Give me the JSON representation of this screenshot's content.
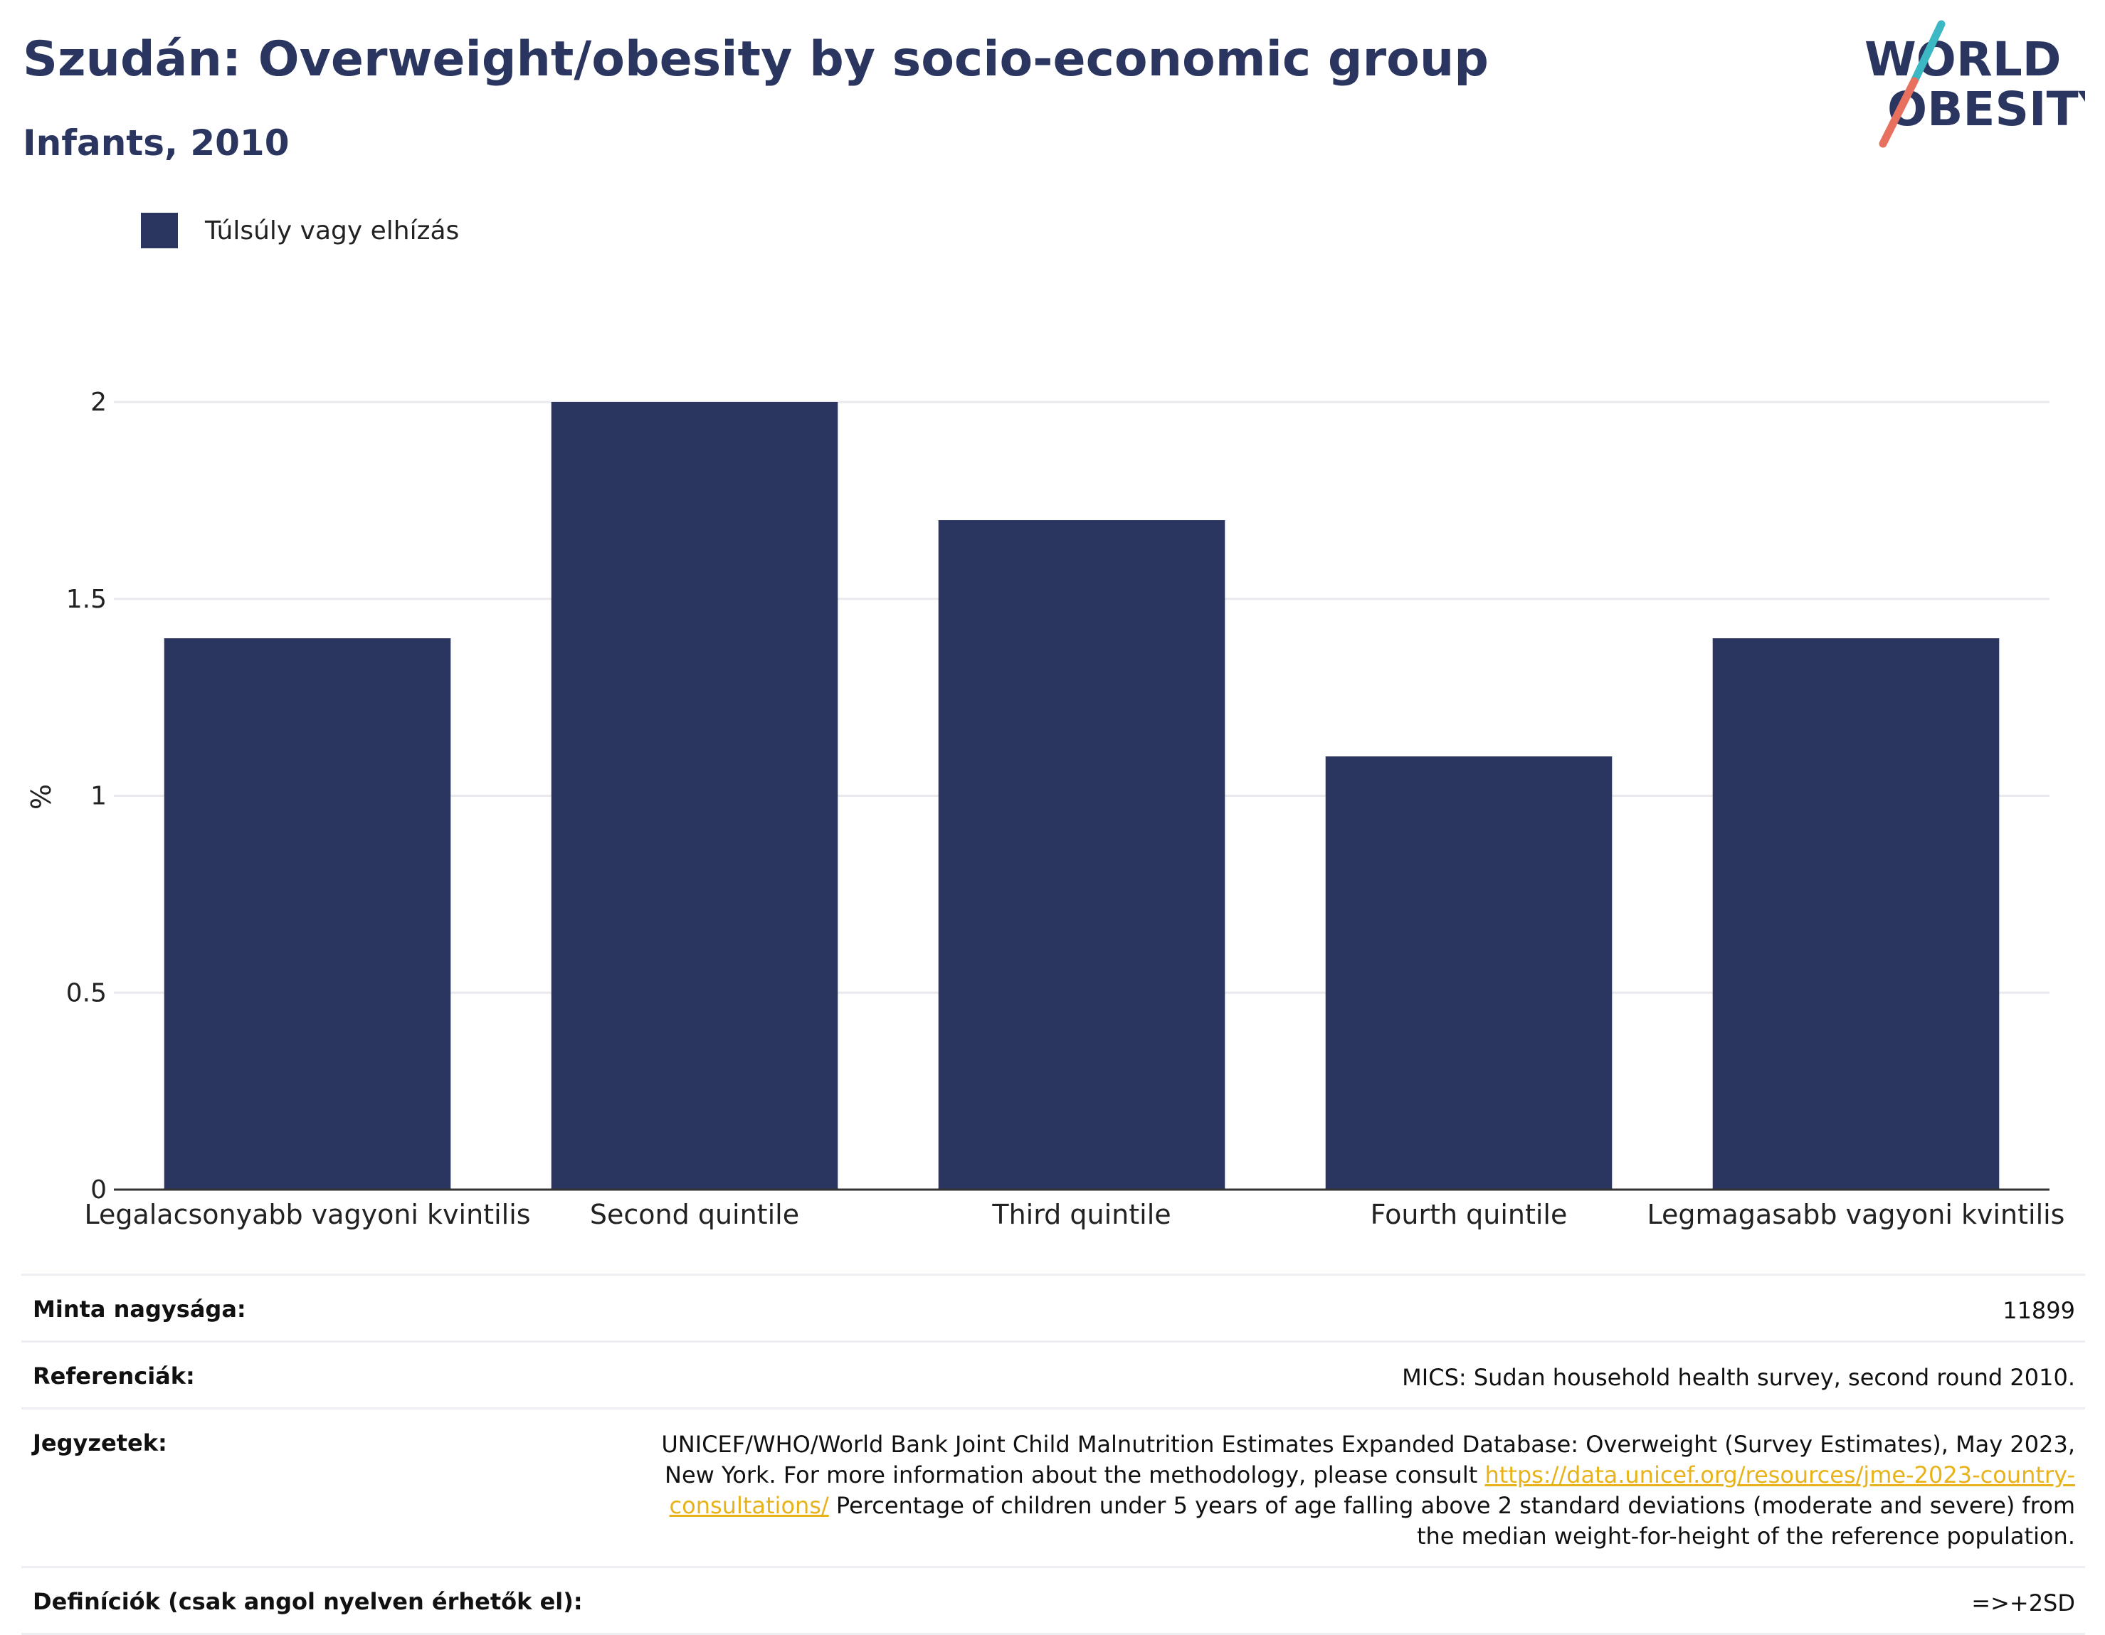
{
  "header": {
    "title": "Szudán: Overweight/obesity by socio-economic group",
    "subtitle": "Infants, 2010"
  },
  "logo": {
    "line1": "WORLD",
    "line2": "OBESITY",
    "colors": {
      "text": "#2a3560",
      "slash_top": "#3bb8c3",
      "slash_bottom": "#e8705e"
    }
  },
  "colors": {
    "bar": "#2a3560",
    "grid": "#e9e9ee",
    "axis": "#333333"
  },
  "chart_data": {
    "type": "bar",
    "categories": [
      "Legalacsonyabb vagyoni kvintilis",
      "Second quintile",
      "Third quintile",
      "Fourth quintile",
      "Legmagasabb vagyoni kvintilis"
    ],
    "series": [
      {
        "name": "Túlsúly vagy elhízás",
        "values": [
          1.4,
          2.0,
          1.7,
          1.1,
          1.4
        ]
      }
    ],
    "ylabel": "%",
    "ylim": [
      0,
      2
    ],
    "yticks": [
      0,
      0.5,
      1,
      1.5,
      2
    ],
    "ytick_labels": [
      "0",
      "0.5",
      "1",
      "1.5",
      "2"
    ],
    "grid": true,
    "legend_position": "top-left"
  },
  "meta": {
    "sample_size": {
      "label": "Minta nagysága:",
      "value": "11899"
    },
    "references": {
      "label": "Referenciák:",
      "value": "MICS: Sudan household health survey, second round 2010."
    },
    "notes": {
      "label": "Jegyzetek:",
      "text_before": "UNICEF/WHO/World Bank Joint Child Malnutrition Estimates Expanded Database: Overweight (Survey Estimates), May 2023, New York. For more information about the methodology, please consult ",
      "link": "https://data.unicef.org/resources/jme-2023-country-consultations/",
      "text_after": " Percentage of children under 5 years of age falling above 2 standard deviations (moderate and severe) from the median weight-for-height of the reference population."
    },
    "definitions": {
      "label": "Definíciók (csak angol nyelven érhetők el):",
      "value": "=>+2SD"
    }
  }
}
